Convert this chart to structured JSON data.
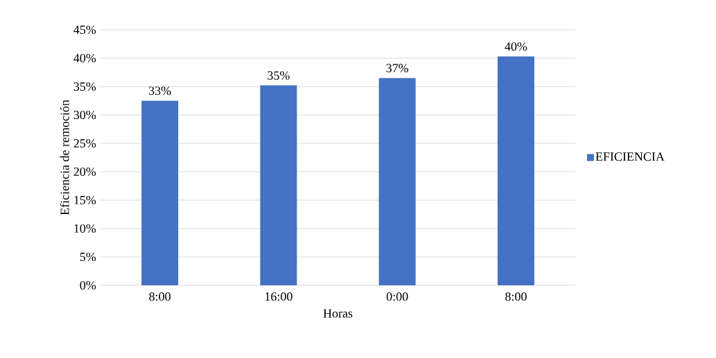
{
  "chart_data": {
    "type": "bar",
    "categories": [
      "8:00",
      "16:00",
      "0:00",
      "8:00"
    ],
    "series": [
      {
        "name": "EFICIENCIA",
        "color": "#4472c4",
        "values": [
          32.5,
          35.2,
          36.5,
          40.3
        ],
        "value_labels": [
          "33%",
          "35%",
          "37%",
          "40%"
        ]
      }
    ],
    "xlabel": "Horas",
    "ylabel": "Eficiencia de remoción",
    "ylim": [
      0,
      45
    ],
    "yticks": [
      {
        "value": 0,
        "label": "0%"
      },
      {
        "value": 5,
        "label": "5%"
      },
      {
        "value": 10,
        "label": "10%"
      },
      {
        "value": 15,
        "label": "15%"
      },
      {
        "value": 20,
        "label": "20%"
      },
      {
        "value": 25,
        "label": "25%"
      },
      {
        "value": 30,
        "label": "30%"
      },
      {
        "value": 35,
        "label": "35%"
      },
      {
        "value": 40,
        "label": "40%"
      },
      {
        "value": 45,
        "label": "45%"
      }
    ],
    "grid": "y",
    "legend": "right"
  }
}
